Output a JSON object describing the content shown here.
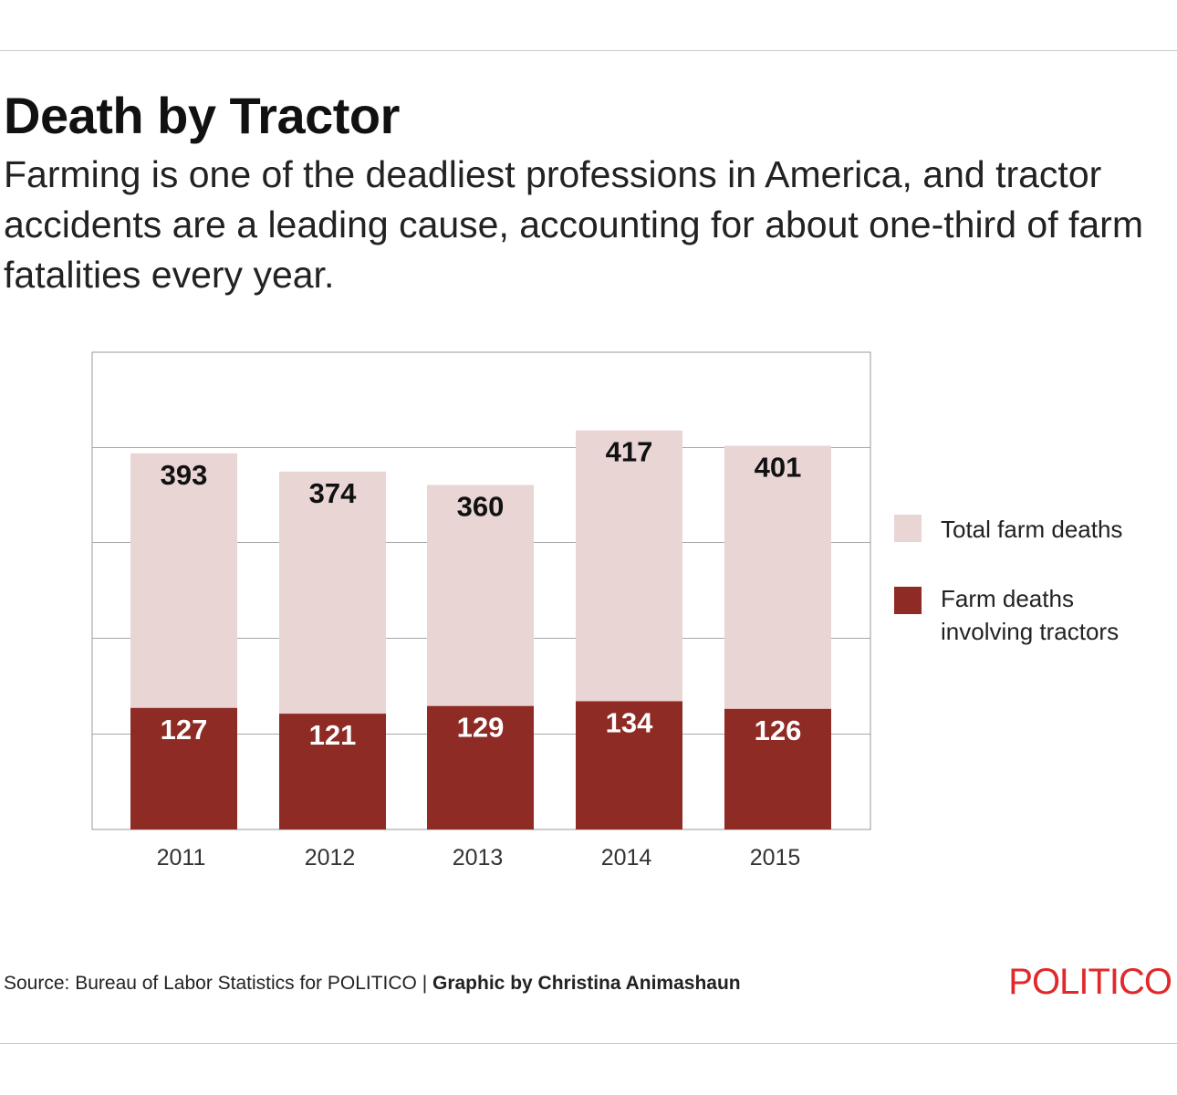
{
  "header": {
    "title": "Death by Tractor",
    "subtitle": "Farming is one of the deadliest professions in America, and tractor accidents are a leading cause, accounting for about one-third of farm fatalities every year."
  },
  "chart_data": {
    "type": "bar",
    "stacking": "overlay",
    "categories": [
      "2011",
      "2012",
      "2013",
      "2014",
      "2015"
    ],
    "series": [
      {
        "name": "Total farm deaths",
        "values": [
          393,
          374,
          360,
          417,
          401
        ],
        "color": "#ead5d5"
      },
      {
        "name": "Farm deaths involving tractors",
        "values": [
          127,
          121,
          129,
          134,
          126
        ],
        "color": "#8e2b25"
      }
    ],
    "value_labels": {
      "total": [
        "393",
        "374",
        "360",
        "417",
        "401"
      ],
      "tractor": [
        "127",
        "121",
        "129",
        "134",
        "126"
      ]
    },
    "title": "",
    "xlabel": "",
    "ylabel": "",
    "y_tick_labels_shown": false,
    "grid": true,
    "legend": "right"
  },
  "legend": {
    "total_label": "Total farm deaths",
    "tractor_label_line1": "Farm deaths",
    "tractor_label_line2": "involving tractors"
  },
  "footer": {
    "source": "Source: Bureau of Labor Statistics for POLITICO",
    "separator": " | ",
    "credit": "Graphic by Christina Animashaun",
    "logo": "POLITICO"
  },
  "colors": {
    "total": "#ead5d5",
    "tractor": "#8e2b25",
    "brand": "#e0292b"
  }
}
